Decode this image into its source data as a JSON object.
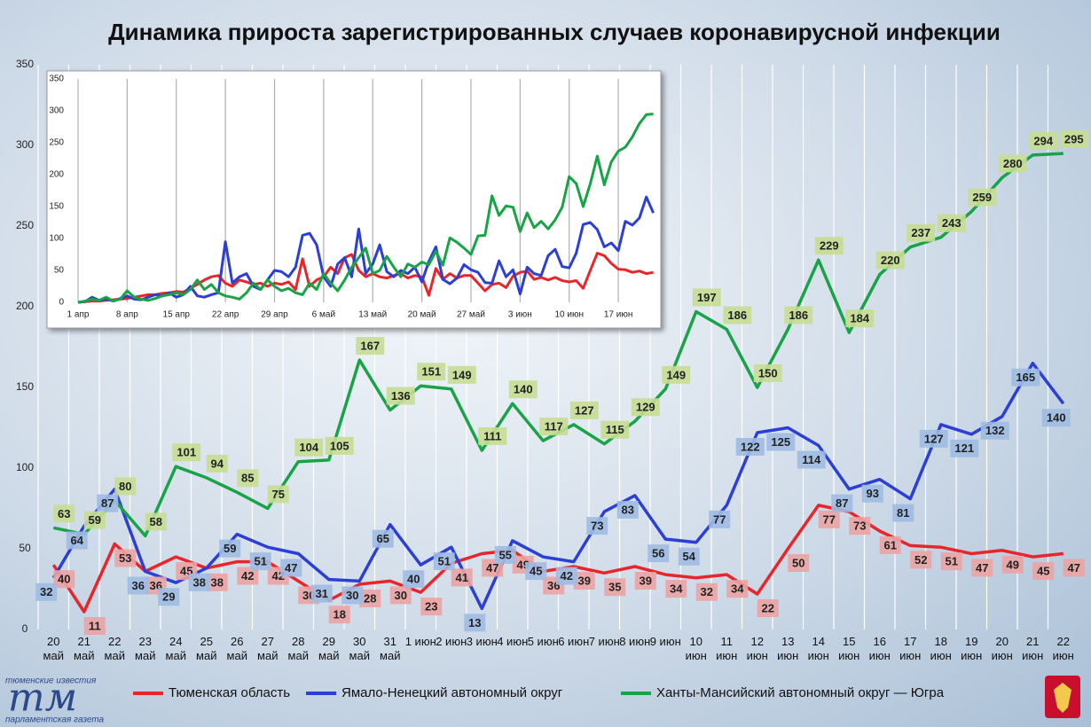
{
  "chart_data": [
    {
      "type": "line",
      "title": "Динамика прироста зарегистрированных случаев коронавирусной инфекции",
      "categories": [
        "20 май",
        "21 май",
        "22 май",
        "23 май",
        "24 май",
        "25 май",
        "26 май",
        "27 май",
        "28 май",
        "29 май",
        "30 май",
        "31 май",
        "1 июн",
        "2 июн",
        "3 июн",
        "4 июн",
        "5 июн",
        "6 июн",
        "7 июн",
        "8 июн",
        "9 июн",
        "10 июн",
        "11 июн",
        "12 июн",
        "13 июн",
        "14 июн",
        "15 июн",
        "16 июн",
        "17 июн",
        "18 июн",
        "19 июн",
        "20 июн",
        "21 июн",
        "22 июн"
      ],
      "series": [
        {
          "name": "Тюменская область",
          "color": "#e8262a",
          "label_fill": "#eba3a3",
          "values": [
            40,
            11,
            53,
            36,
            45,
            38,
            42,
            42,
            30,
            18,
            28,
            30,
            23,
            41,
            47,
            49,
            36,
            39,
            35,
            39,
            34,
            32,
            34,
            22,
            50,
            77,
            73,
            61,
            52,
            51,
            47,
            49,
            45,
            47
          ]
        },
        {
          "name": "Ямало-Ненецкий автономный округ",
          "color": "#2b3fd6",
          "label_fill": "#9fbbe2",
          "values": [
            32,
            64,
            87,
            36,
            29,
            38,
            59,
            51,
            47,
            31,
            30,
            65,
            40,
            51,
            13,
            55,
            45,
            42,
            73,
            83,
            56,
            54,
            77,
            122,
            125,
            114,
            87,
            93,
            81,
            127,
            121,
            132,
            165,
            140
          ]
        },
        {
          "name": "Ханты-Мансийский автономный округ — Югра",
          "color": "#19a347",
          "label_fill": "#c8dd92",
          "values": [
            63,
            59,
            80,
            58,
            101,
            94,
            85,
            75,
            104,
            105,
            167,
            136,
            151,
            149,
            111,
            140,
            117,
            127,
            115,
            129,
            149,
            197,
            186,
            150,
            186,
            229,
            184,
            220,
            237,
            243,
            259,
            280,
            294,
            295
          ]
        }
      ],
      "ylim": [
        0,
        350
      ],
      "yticks": [
        0,
        50,
        100,
        150,
        200,
        250,
        300,
        350
      ],
      "grid": "x",
      "data_labels": true
    },
    {
      "type": "line",
      "categories": [
        "1 апр",
        null,
        null,
        null,
        null,
        null,
        null,
        "8 апр",
        null,
        null,
        null,
        null,
        null,
        null,
        "15 апр",
        null,
        null,
        null,
        null,
        null,
        null,
        "22 апр",
        null,
        null,
        null,
        null,
        null,
        null,
        "29 апр",
        null,
        null,
        null,
        null,
        null,
        null,
        "6 май",
        null,
        null,
        null,
        null,
        null,
        null,
        "13 май",
        null,
        null,
        null,
        null,
        null,
        null,
        "20 май",
        null,
        null,
        null,
        null,
        null,
        null,
        "27 май",
        null,
        null,
        null,
        null,
        null,
        null,
        "3 июн",
        null,
        null,
        null,
        null,
        null,
        null,
        "10 июн",
        null,
        null,
        null,
        null,
        null,
        null,
        "17 июн",
        null,
        null,
        null,
        null,
        null
      ],
      "series": [
        {
          "color": "#e8262a",
          "values": [
            0,
            1,
            2,
            2,
            3,
            4,
            5,
            6,
            8,
            10,
            12,
            12,
            14,
            15,
            17,
            16,
            22,
            28,
            35,
            40,
            42,
            30,
            25,
            35,
            32,
            28,
            30,
            25,
            30,
            28,
            32,
            20,
            68,
            25,
            35,
            40,
            55,
            45,
            70,
            75,
            50,
            40,
            45,
            40,
            38,
            42,
            45,
            38,
            42,
            40,
            11,
            53,
            36,
            45,
            38,
            42,
            42,
            30,
            18,
            28,
            30,
            23,
            41,
            47,
            49,
            36,
            39,
            35,
            39,
            34,
            32,
            34,
            22,
            50,
            77,
            73,
            61,
            52,
            51,
            47,
            49,
            45,
            47
          ]
        },
        {
          "color": "#2b3fd6",
          "values": [
            0,
            1,
            8,
            3,
            5,
            2,
            6,
            10,
            5,
            4,
            8,
            12,
            10,
            15,
            8,
            12,
            25,
            10,
            8,
            12,
            15,
            95,
            30,
            40,
            45,
            25,
            20,
            35,
            50,
            48,
            40,
            55,
            105,
            108,
            90,
            40,
            25,
            60,
            70,
            40,
            115,
            45,
            60,
            90,
            48,
            40,
            50,
            45,
            55,
            32,
            64,
            87,
            36,
            29,
            38,
            59,
            51,
            47,
            31,
            30,
            65,
            40,
            51,
            13,
            55,
            45,
            42,
            73,
            83,
            56,
            54,
            77,
            122,
            125,
            114,
            87,
            93,
            81,
            127,
            121,
            132,
            165,
            140
          ]
        },
        {
          "color": "#19a347",
          "values": [
            0,
            2,
            5,
            3,
            8,
            2,
            5,
            18,
            8,
            5,
            3,
            6,
            10,
            12,
            15,
            12,
            20,
            35,
            20,
            28,
            15,
            10,
            8,
            5,
            15,
            30,
            20,
            35,
            25,
            18,
            22,
            15,
            12,
            30,
            20,
            45,
            30,
            18,
            35,
            55,
            70,
            85,
            45,
            50,
            72,
            55,
            40,
            60,
            55,
            63,
            59,
            80,
            58,
            101,
            94,
            85,
            75,
            104,
            105,
            167,
            136,
            151,
            149,
            111,
            140,
            117,
            127,
            115,
            129,
            149,
            197,
            186,
            150,
            186,
            229,
            184,
            220,
            237,
            243,
            259,
            280,
            294,
            295
          ]
        }
      ],
      "ylim": [
        0,
        350
      ],
      "yticks": [
        0,
        50,
        100,
        150,
        200,
        250,
        300,
        350
      ],
      "grid": "x"
    }
  ],
  "logo": {
    "top": "тюменские известия",
    "mark": "тм",
    "bottom": "парламентская газета"
  }
}
